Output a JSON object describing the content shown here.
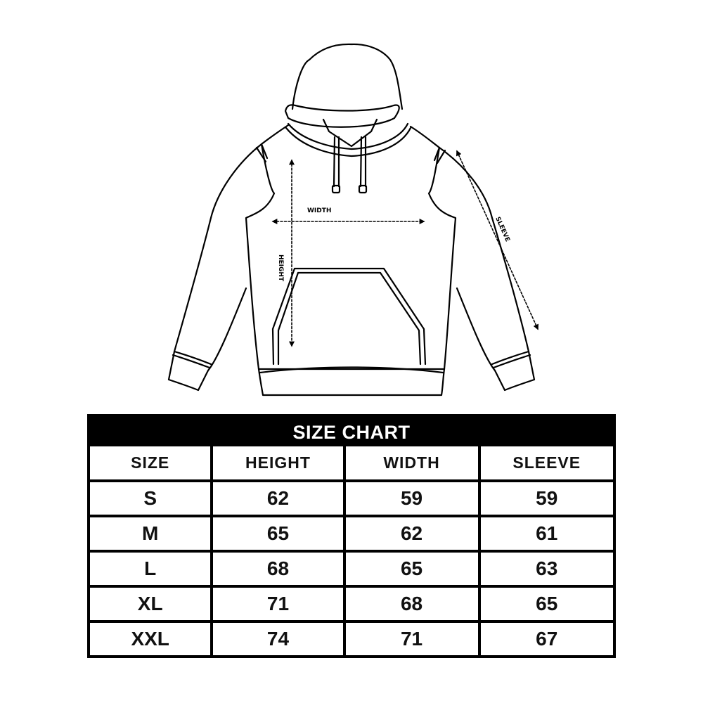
{
  "diagram": {
    "labels": {
      "width": "WIDTH",
      "height": "HEIGHT",
      "sleeve": "SLEEVE"
    }
  },
  "size_chart": {
    "title": "SIZE CHART",
    "headers": [
      "SIZE",
      "HEIGHT",
      "WIDTH",
      "SLEEVE"
    ],
    "rows": [
      [
        "S",
        "62",
        "59",
        "59"
      ],
      [
        "M",
        "65",
        "62",
        "61"
      ],
      [
        "L",
        "68",
        "65",
        "63"
      ],
      [
        "XL",
        "71",
        "68",
        "65"
      ],
      [
        "XXL",
        "74",
        "71",
        "67"
      ]
    ]
  }
}
